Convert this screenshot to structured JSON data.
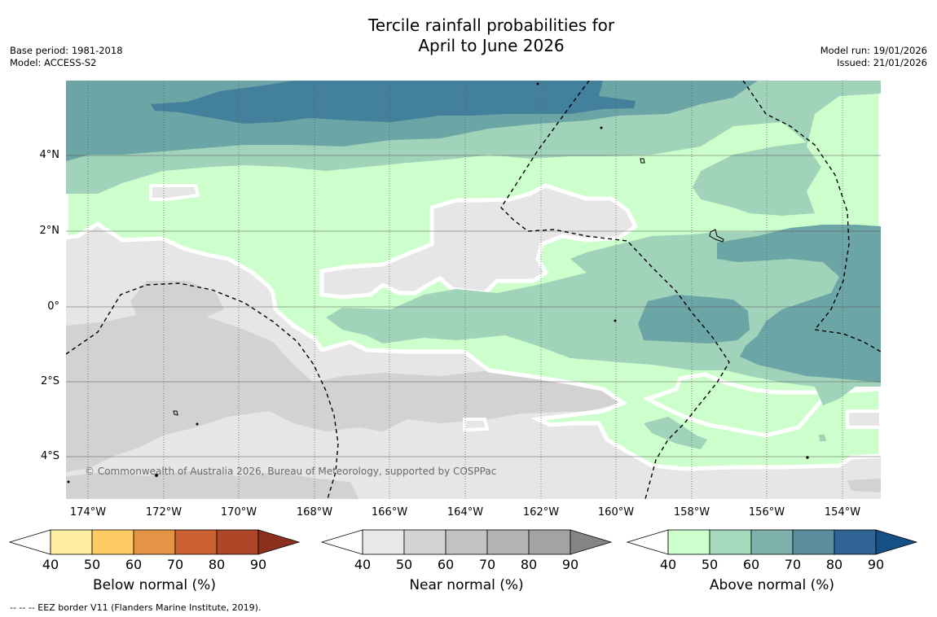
{
  "header": {
    "title_line1": "Tercile rainfall probabilities for",
    "title_line2": "April to June 2026",
    "base_period": "Base period: 1981-2018",
    "model": "Model: ACCESS-S2",
    "model_run": "Model run: 19/01/2026",
    "issued": "Issued: 21/01/2026"
  },
  "map": {
    "lat_ticks": [
      "4°N",
      "2°N",
      "0°",
      "2°S",
      "4°S"
    ],
    "lon_ticks": [
      "174°W",
      "172°W",
      "170°W",
      "168°W",
      "166°W",
      "164°W",
      "162°W",
      "160°W",
      "158°W",
      "156°W",
      "154°W"
    ],
    "copyright": "© Commonwealth of Australia 2026, Bureau of Meteorology, supported by COSPPac",
    "colors": {
      "near_40": "#e6e6e6",
      "near_50": "#d2d2d2",
      "above_40": "#ccffcc",
      "above_50": "#a1d3ba",
      "above_60": "#6ca5a5",
      "above_70": "#43809b"
    }
  },
  "colorbars": [
    {
      "title": "Below normal (%)",
      "ticks": [
        "40",
        "50",
        "60",
        "70",
        "80",
        "90"
      ],
      "colors": [
        "#ffeea1",
        "#ffcb63",
        "#e39545",
        "#cc6233",
        "#ae4727",
        "#8c2f1c"
      ]
    },
    {
      "title": "Near normal (%)",
      "ticks": [
        "40",
        "50",
        "60",
        "70",
        "80",
        "90"
      ],
      "colors": [
        "#e8e8e8",
        "#d4d4d4",
        "#c3c3c3",
        "#b3b3b3",
        "#a3a3a3",
        "#858585"
      ]
    },
    {
      "title": "Above normal (%)",
      "ticks": [
        "40",
        "50",
        "60",
        "70",
        "80",
        "90"
      ],
      "colors": [
        "#ccffcc",
        "#a6d9bb",
        "#7fb2ad",
        "#5b8fa0",
        "#306396",
        "#154f85"
      ]
    }
  ],
  "footnote": "--  --  -- EEZ border V11 (Flanders Marine Institute, 2019)."
}
